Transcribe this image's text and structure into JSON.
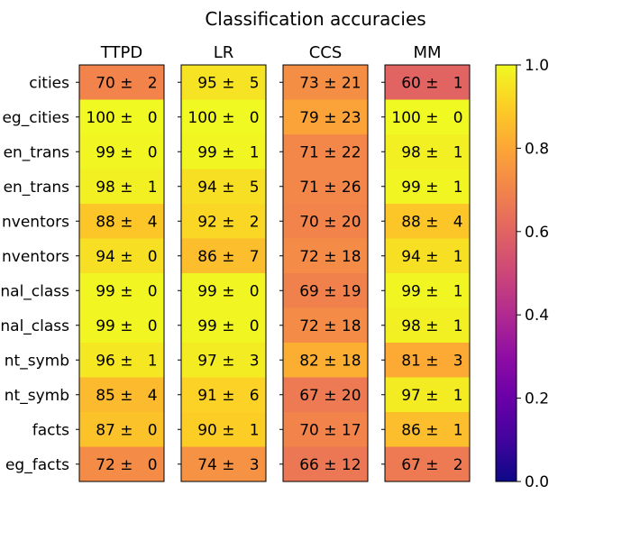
{
  "chart_data": {
    "type": "heatmap",
    "title": "Classification accuracies",
    "columns": [
      "TTPD",
      "LR",
      "CCS",
      "MM"
    ],
    "rows": [
      "cities",
      "neg_cities",
      "sp_en_trans",
      "neg_sp_en_trans",
      "inventors",
      "neg_inventors",
      "animal_class",
      "neg_animal_class",
      "element_symb",
      "neg_element_symb",
      "facts",
      "neg_facts"
    ],
    "row_labels_visible": [
      "cities",
      "eg_cities",
      "en_trans",
      "en_trans",
      "nventors",
      "nventors",
      "nal_class",
      "nal_class",
      "nt_symb",
      "nt_symb",
      "facts",
      "eg_facts"
    ],
    "values": [
      [
        70,
        95,
        73,
        60
      ],
      [
        100,
        100,
        79,
        100
      ],
      [
        99,
        99,
        71,
        98
      ],
      [
        98,
        94,
        71,
        99
      ],
      [
        88,
        92,
        70,
        88
      ],
      [
        94,
        86,
        72,
        94
      ],
      [
        99,
        99,
        69,
        99
      ],
      [
        99,
        99,
        72,
        98
      ],
      [
        96,
        97,
        82,
        81
      ],
      [
        85,
        91,
        67,
        97
      ],
      [
        87,
        90,
        70,
        86
      ],
      [
        72,
        74,
        66,
        67
      ]
    ],
    "errors": [
      [
        2,
        5,
        21,
        1
      ],
      [
        0,
        0,
        23,
        0
      ],
      [
        0,
        1,
        22,
        1
      ],
      [
        1,
        5,
        26,
        1
      ],
      [
        4,
        2,
        20,
        4
      ],
      [
        0,
        7,
        18,
        1
      ],
      [
        0,
        0,
        19,
        1
      ],
      [
        0,
        0,
        18,
        1
      ],
      [
        1,
        3,
        18,
        3
      ],
      [
        4,
        6,
        20,
        1
      ],
      [
        0,
        1,
        17,
        1
      ],
      [
        0,
        3,
        12,
        2
      ]
    ],
    "value_scale": 100,
    "colormap": "plasma",
    "colorbar": {
      "range": [
        0.0,
        1.0
      ],
      "ticks": [
        "0.0",
        "0.2",
        "0.4",
        "0.6",
        "0.8",
        "1.0"
      ]
    }
  },
  "colors": {
    "cell_border": "#000000"
  }
}
